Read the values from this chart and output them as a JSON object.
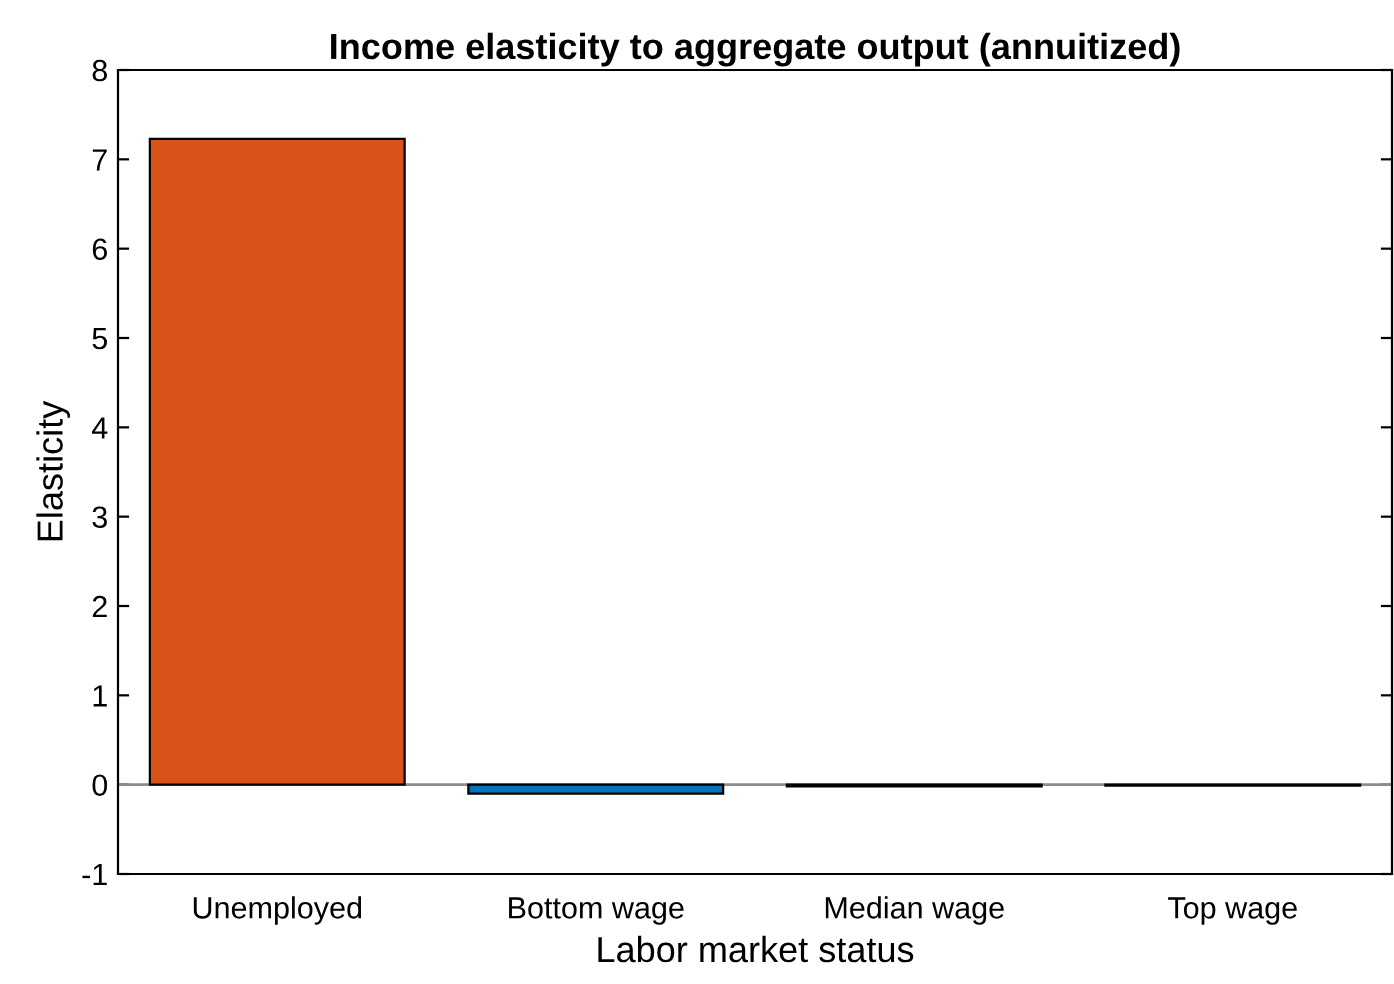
{
  "chart_data": {
    "type": "bar",
    "title": "Income elasticity to aggregate output (annuitized)",
    "xlabel": "Labor market status",
    "ylabel": "Elasticity",
    "categories": [
      "Unemployed",
      "Bottom wage",
      "Median wage",
      "Top wage"
    ],
    "values": [
      7.23,
      -0.1,
      -0.02,
      -0.01
    ],
    "colors": [
      "#d95319",
      "#0072bd",
      "#0072bd",
      "#0072bd"
    ],
    "ylim": [
      -1,
      8
    ],
    "yticks": [
      -1,
      0,
      1,
      2,
      3,
      4,
      5,
      6,
      7,
      8
    ],
    "grid": false,
    "legend": false,
    "ref_lines": [
      {
        "axis": "y",
        "value": 0,
        "color": "#8c8c8c"
      }
    ]
  }
}
